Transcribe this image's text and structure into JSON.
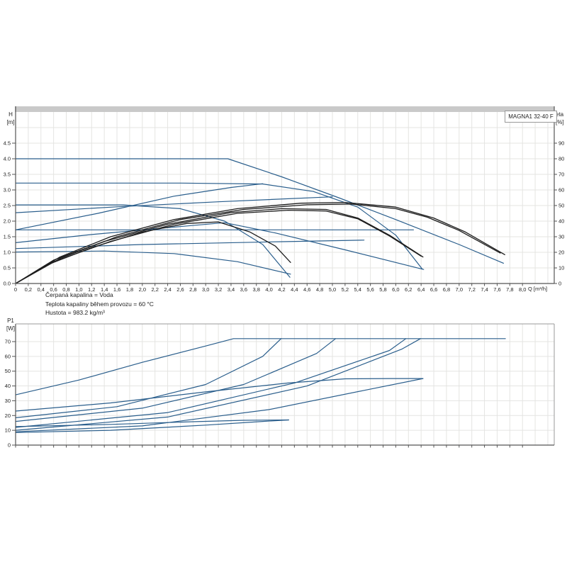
{
  "header": {
    "pump_model": "MAGNA1 32-40 F"
  },
  "axis_labels": {
    "h": "H",
    "h_unit": "[m]",
    "eta": "eta",
    "eta_unit": "[%]",
    "p1": "P1",
    "p1_unit": "[W]",
    "q": "Q [m³/h]"
  },
  "footer": {
    "lines": [
      "Čerpaná kapalina = Voda",
      "Teplota kapaliny během provozu = 60 °C",
      "Hustota = 983.2 kg/m³"
    ]
  },
  "colors": {
    "curve_blue": "#2a5e8c",
    "curve_black": "#1d1d1d",
    "grid": "#e4e4e2",
    "axis": "#555555",
    "axis_light": "#9a9a9a",
    "bar": "#c9c9c9",
    "box_border": "#999999",
    "text": "#1f1f1f"
  },
  "chart_data": [
    {
      "type": "line",
      "id": "head-efficiency-chart",
      "title": "MAGNA1 32-40 F",
      "xlabel": "Q [m³/h]",
      "ylabel_left": "H [m]",
      "ylabel_right": "eta [%]",
      "xlim": [
        0,
        8.5
      ],
      "ylim_left": [
        0,
        5.5
      ],
      "ylim_right": [
        0,
        110
      ],
      "grid": true,
      "x_tick_step": 0.2,
      "x_tick_labels": [
        "0",
        "0,2",
        "0,4",
        "0,6",
        "0,8",
        "1,0",
        "1,2",
        "1,4",
        "1,6",
        "1,8",
        "2,0",
        "2,2",
        "2,4",
        "2,6",
        "2,8",
        "3,0",
        "3,2",
        "3,4",
        "3,6",
        "3,8",
        "4,0",
        "4,2",
        "4,4",
        "4,6",
        "4,8",
        "5,0",
        "5,2",
        "5,4",
        "5,6",
        "5,8",
        "6,0",
        "6,2",
        "6,4",
        "6,6",
        "6,8",
        "7,0",
        "7,2",
        "7,4",
        "7,6",
        "7,8",
        "8,0"
      ],
      "y_tick_labels": [
        "0.0",
        "0.5",
        "1.0",
        "1.5",
        "2.0",
        "2.5",
        "3.0",
        "3.5",
        "4.0",
        "4.5"
      ],
      "right_tick_labels": [
        "0",
        "10",
        "20",
        "30",
        "40",
        "50",
        "60",
        "70",
        "80",
        "90"
      ],
      "series": [
        {
          "name": "hq-speed-III-max",
          "axis": "left",
          "color": "curve_blue",
          "points": [
            [
              0,
              4.0
            ],
            [
              3.35,
              4.0
            ],
            [
              4.2,
              3.42
            ],
            [
              5.1,
              2.75
            ],
            [
              6.0,
              2.05
            ],
            [
              7.0,
              1.25
            ],
            [
              7.7,
              0.65
            ]
          ]
        },
        {
          "name": "hq-speed-II",
          "axis": "left",
          "color": "curve_blue",
          "points": [
            [
              0,
              3.22
            ],
            [
              2.6,
              3.22
            ],
            [
              3.9,
              3.19
            ],
            [
              4.7,
              2.95
            ],
            [
              5.4,
              2.45
            ],
            [
              6.0,
              1.55
            ],
            [
              6.42,
              0.46
            ]
          ]
        },
        {
          "name": "hq-speed-I",
          "axis": "left",
          "color": "curve_blue",
          "points": [
            [
              0,
              2.52
            ],
            [
              1.7,
              2.52
            ],
            [
              2.6,
              2.4
            ],
            [
              3.3,
              2.0
            ],
            [
              3.9,
              1.25
            ],
            [
              4.33,
              0.2
            ]
          ]
        },
        {
          "name": "hq-prop-pressure-high",
          "axis": "left",
          "color": "curve_blue",
          "points": [
            [
              0,
              2.27
            ],
            [
              1.6,
              2.46
            ],
            [
              3.2,
              2.62
            ],
            [
              5.0,
              2.78
            ]
          ]
        },
        {
          "name": "hq-prop-pressure-mid",
          "axis": "left",
          "color": "curve_blue",
          "points": [
            [
              0,
              1.72
            ],
            [
              1.3,
              2.25
            ],
            [
              2.5,
              2.8
            ],
            [
              3.4,
              3.08
            ],
            [
              3.9,
              3.2
            ]
          ]
        },
        {
          "name": "hq-prop-pressure-low",
          "axis": "left",
          "color": "curve_blue",
          "points": [
            [
              0,
              1.31
            ],
            [
              1.2,
              1.57
            ],
            [
              2.4,
              1.79
            ],
            [
              3.3,
              1.95
            ],
            [
              4.1,
              1.62
            ],
            [
              5.2,
              1.08
            ],
            [
              6.44,
              0.45
            ]
          ]
        },
        {
          "name": "hq-const-pressure-mid",
          "axis": "left",
          "color": "curve_blue",
          "points": [
            [
              0,
              1.72
            ],
            [
              6.28,
              1.72
            ]
          ]
        },
        {
          "name": "hq-low-curve-rising",
          "axis": "left",
          "color": "curve_blue",
          "points": [
            [
              0,
              1.12
            ],
            [
              2.0,
              1.25
            ],
            [
              4.2,
              1.34
            ],
            [
              5.5,
              1.39
            ]
          ]
        },
        {
          "name": "hq-min-curve",
          "axis": "left",
          "color": "curve_blue",
          "points": [
            [
              0,
              1.01
            ],
            [
              1.4,
              1.04
            ],
            [
              2.5,
              0.96
            ],
            [
              3.5,
              0.7
            ],
            [
              4.34,
              0.3
            ]
          ]
        },
        {
          "name": "eta-speed-III",
          "axis": "right",
          "color": "curve_black",
          "points": [
            [
              0,
              0
            ],
            [
              0.7,
              17
            ],
            [
              1.5,
              30
            ],
            [
              2.5,
              41
            ],
            [
              3.5,
              48
            ],
            [
              4.5,
              51.5
            ],
            [
              5.2,
              52
            ],
            [
              6.0,
              49
            ],
            [
              6.6,
              42
            ],
            [
              7.1,
              33
            ],
            [
              7.72,
              18.5
            ]
          ]
        },
        {
          "name": "eta-speed-III-b",
          "axis": "right",
          "color": "curve_black",
          "points": [
            [
              0,
              0
            ],
            [
              0.7,
              16
            ],
            [
              1.6,
              30
            ],
            [
              2.6,
              41
            ],
            [
              3.6,
              47.5
            ],
            [
              4.6,
              50.5
            ],
            [
              5.3,
              51
            ],
            [
              6.0,
              48
            ],
            [
              6.5,
              42.5
            ],
            [
              7.0,
              34
            ],
            [
              7.65,
              19.5
            ]
          ]
        },
        {
          "name": "eta-speed-II",
          "axis": "right",
          "color": "curve_black",
          "points": [
            [
              0,
              0
            ],
            [
              0.6,
              15
            ],
            [
              1.4,
              27
            ],
            [
              2.4,
              38
            ],
            [
              3.4,
              45.5
            ],
            [
              4.2,
              48
            ],
            [
              4.9,
              47.5
            ],
            [
              5.4,
              42
            ],
            [
              5.9,
              31
            ],
            [
              6.43,
              17
            ]
          ]
        },
        {
          "name": "eta-speed-II-b",
          "axis": "right",
          "color": "curve_black",
          "points": [
            [
              0,
              0
            ],
            [
              0.6,
              14
            ],
            [
              1.5,
              27
            ],
            [
              2.5,
              38
            ],
            [
              3.5,
              45
            ],
            [
              4.3,
              47
            ],
            [
              4.9,
              46.5
            ],
            [
              5.4,
              41.5
            ],
            [
              5.9,
              30.5
            ],
            [
              6.4,
              17.5
            ]
          ]
        },
        {
          "name": "eta-speed-I",
          "axis": "right",
          "color": "curve_black",
          "points": [
            [
              0,
              0
            ],
            [
              0.5,
              12
            ],
            [
              1.2,
              23
            ],
            [
              2.0,
              33
            ],
            [
              2.7,
              38.5
            ],
            [
              3.2,
              39.5
            ],
            [
              3.7,
              33
            ],
            [
              4.1,
              24
            ],
            [
              4.34,
              13.5
            ]
          ]
        }
      ]
    },
    {
      "type": "line",
      "id": "power-chart",
      "title": "",
      "xlabel": "",
      "ylabel_left": "P1 [W]",
      "xlim": [
        0,
        8.5
      ],
      "ylim_left": [
        0,
        82
      ],
      "grid": true,
      "x_tick_step": 0.2,
      "x_tick_labels": [],
      "y_tick_labels": [
        "0",
        "10",
        "20",
        "30",
        "40",
        "50",
        "60",
        "70"
      ],
      "series": [
        {
          "name": "p1-speed-III-max",
          "axis": "left",
          "color": "curve_blue",
          "points": [
            [
              0,
              34
            ],
            [
              1.0,
              44
            ],
            [
              2.0,
              56
            ],
            [
              3.0,
              67
            ],
            [
              3.44,
              72
            ],
            [
              7.73,
              72
            ]
          ]
        },
        {
          "name": "p1-speed-II",
          "axis": "left",
          "color": "curve_blue",
          "points": [
            [
              0,
              23
            ],
            [
              1.5,
              28.5
            ],
            [
              3.0,
              36
            ],
            [
              4.3,
              42
            ],
            [
              5.2,
              44.8
            ],
            [
              5.9,
              45
            ],
            [
              6.43,
              45
            ]
          ]
        },
        {
          "name": "p1-speed-I",
          "axis": "left",
          "color": "curve_blue",
          "points": [
            [
              0,
              12.5
            ],
            [
              1.5,
              14
            ],
            [
              2.8,
              15.8
            ],
            [
              3.6,
              16.8
            ],
            [
              4.31,
              17
            ]
          ]
        },
        {
          "name": "p1-mode-a",
          "axis": "left",
          "color": "curve_blue",
          "points": [
            [
              0,
              18.5
            ],
            [
              1.6,
              26
            ],
            [
              3.0,
              41
            ],
            [
              3.9,
              60
            ],
            [
              4.19,
              72
            ]
          ]
        },
        {
          "name": "p1-mode-b",
          "axis": "left",
          "color": "curve_blue",
          "points": [
            [
              0,
              16
            ],
            [
              2.0,
              25
            ],
            [
              3.6,
              41
            ],
            [
              4.75,
              62
            ],
            [
              5.05,
              72
            ]
          ]
        },
        {
          "name": "p1-mode-c",
          "axis": "left",
          "color": "curve_blue",
          "points": [
            [
              0,
              12
            ],
            [
              2.4,
              22
            ],
            [
              4.4,
              42
            ],
            [
              5.9,
              64
            ],
            [
              6.16,
              72
            ]
          ]
        },
        {
          "name": "p1-mode-d",
          "axis": "left",
          "color": "curve_blue",
          "points": [
            [
              0,
              10
            ],
            [
              2.4,
              19
            ],
            [
              4.6,
              40
            ],
            [
              6.1,
              65
            ],
            [
              6.39,
              72
            ]
          ]
        },
        {
          "name": "p1-low-a",
          "axis": "left",
          "color": "curve_blue",
          "points": [
            [
              0,
              9
            ],
            [
              2.0,
              13
            ],
            [
              4.0,
              24
            ],
            [
              5.5,
              37
            ],
            [
              6.43,
              45
            ]
          ]
        },
        {
          "name": "p1-min",
          "axis": "left",
          "color": "curve_blue",
          "points": [
            [
              0,
              8.5
            ],
            [
              1.5,
              10
            ],
            [
              3.0,
              13.5
            ],
            [
              3.9,
              16
            ],
            [
              4.31,
              17
            ]
          ]
        }
      ]
    }
  ]
}
